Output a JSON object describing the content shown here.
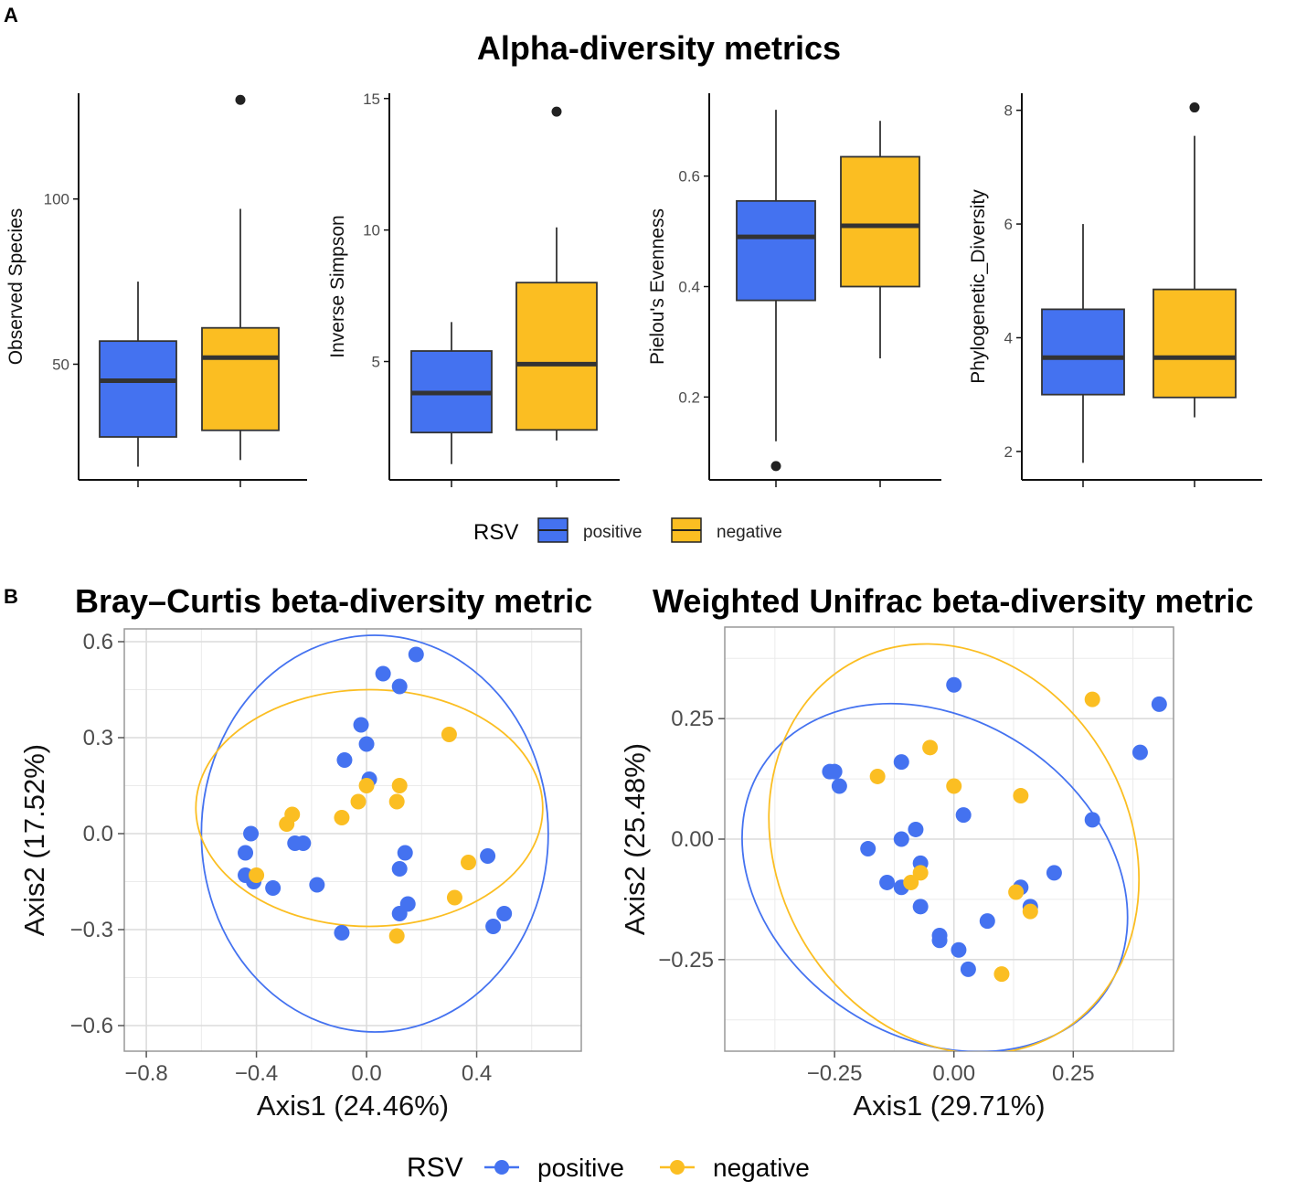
{
  "panel_a_label": "A",
  "panel_b_label": "B",
  "alpha_title": "Alpha-diversity metrics",
  "colors": {
    "positive": "#4472f0",
    "negative": "#fbbe22",
    "axis": "#111111",
    "grid": "#dcdcdc",
    "tick_text": "#4d4d4d"
  },
  "alpha_legend": {
    "title": "RSV",
    "items": [
      "positive",
      "negative"
    ]
  },
  "beta_legend": {
    "title": "RSV",
    "items": [
      "positive",
      "negative"
    ]
  },
  "chart_data": [
    {
      "type": "box",
      "ylabel": "Observed Species",
      "ylim": [
        15,
        132
      ],
      "yticks": [
        50,
        100
      ],
      "series": [
        {
          "name": "positive",
          "whisker_low": 19,
          "q1": 28,
          "median": 45,
          "q3": 57,
          "whisker_high": 75,
          "outliers": []
        },
        {
          "name": "negative",
          "whisker_low": 21,
          "q1": 30,
          "median": 52,
          "q3": 61,
          "whisker_high": 97,
          "outliers": [
            130
          ]
        }
      ]
    },
    {
      "type": "box",
      "ylabel": "Inverse Simpson",
      "ylim": [
        0.5,
        15.2
      ],
      "yticks": [
        5,
        10,
        15
      ],
      "series": [
        {
          "name": "positive",
          "whisker_low": 1.1,
          "q1": 2.3,
          "median": 3.8,
          "q3": 5.4,
          "whisker_high": 6.5,
          "outliers": []
        },
        {
          "name": "negative",
          "whisker_low": 2.0,
          "q1": 2.4,
          "median": 4.9,
          "q3": 8.0,
          "whisker_high": 10.1,
          "outliers": [
            14.5
          ]
        }
      ]
    },
    {
      "type": "box",
      "ylabel": "Pielou's Evenness",
      "ylim": [
        0.05,
        0.75
      ],
      "yticks": [
        0.2,
        0.4,
        0.6
      ],
      "series": [
        {
          "name": "positive",
          "whisker_low": 0.12,
          "q1": 0.375,
          "median": 0.49,
          "q3": 0.555,
          "whisker_high": 0.72,
          "outliers": [
            0.075
          ]
        },
        {
          "name": "negative",
          "whisker_low": 0.27,
          "q1": 0.4,
          "median": 0.51,
          "q3": 0.635,
          "whisker_high": 0.7,
          "outliers": []
        }
      ]
    },
    {
      "type": "box",
      "ylabel": "Phylogenetic_Diversity",
      "ylim": [
        1.5,
        8.3
      ],
      "yticks": [
        2,
        4,
        6,
        8
      ],
      "series": [
        {
          "name": "positive",
          "whisker_low": 1.8,
          "q1": 3.0,
          "median": 3.65,
          "q3": 4.5,
          "whisker_high": 6.0,
          "outliers": []
        },
        {
          "name": "negative",
          "whisker_low": 2.6,
          "q1": 2.95,
          "median": 3.65,
          "q3": 4.85,
          "whisker_high": 7.55,
          "outliers": [
            8.05
          ]
        }
      ]
    },
    {
      "type": "scatter",
      "title": "Bray–Curtis beta-diversity metric",
      "xlabel": "Axis1 (24.46%)",
      "ylabel": "Axis2 (17.52%)",
      "xlim": [
        -0.88,
        0.78
      ],
      "ylim": [
        -0.68,
        0.64
      ],
      "xticks": [
        -0.8,
        -0.4,
        0.0,
        0.4
      ],
      "xtick_labels": [
        "−0.8",
        "−0.4",
        "0.0",
        "0.4"
      ],
      "yticks": [
        -0.6,
        -0.3,
        0.0,
        0.3,
        0.6
      ],
      "ytick_labels": [
        "−0.6",
        "−0.3",
        "0.0",
        "0.3",
        "0.6"
      ],
      "series": [
        {
          "name": "positive",
          "points": [
            [
              0.18,
              0.56
            ],
            [
              0.06,
              0.5
            ],
            [
              0.12,
              0.46
            ],
            [
              -0.02,
              0.34
            ],
            [
              0.0,
              0.28
            ],
            [
              -0.08,
              0.23
            ],
            [
              0.01,
              0.17
            ],
            [
              -0.42,
              0.0
            ],
            [
              -0.26,
              -0.03
            ],
            [
              -0.23,
              -0.03
            ],
            [
              -0.44,
              -0.06
            ],
            [
              -0.18,
              -0.16
            ],
            [
              -0.44,
              -0.13
            ],
            [
              -0.34,
              -0.17
            ],
            [
              -0.41,
              -0.15
            ],
            [
              0.14,
              -0.06
            ],
            [
              0.12,
              -0.11
            ],
            [
              0.15,
              -0.22
            ],
            [
              0.12,
              -0.25
            ],
            [
              0.44,
              -0.07
            ],
            [
              0.5,
              -0.25
            ],
            [
              0.46,
              -0.29
            ],
            [
              -0.09,
              -0.31
            ]
          ]
        },
        {
          "name": "negative",
          "points": [
            [
              0.3,
              0.31
            ],
            [
              0.12,
              0.15
            ],
            [
              0.0,
              0.15
            ],
            [
              -0.03,
              0.1
            ],
            [
              0.11,
              0.1
            ],
            [
              -0.09,
              0.05
            ],
            [
              -0.29,
              0.03
            ],
            [
              -0.27,
              0.06
            ],
            [
              -0.4,
              -0.13
            ],
            [
              0.37,
              -0.09
            ],
            [
              0.32,
              -0.2
            ],
            [
              0.11,
              -0.32
            ]
          ]
        }
      ],
      "ellipses": [
        {
          "name": "positive",
          "center": [
            0.03,
            0.0
          ],
          "rx": 0.63,
          "ry": 0.62
        },
        {
          "name": "negative",
          "center": [
            0.01,
            0.08
          ],
          "rx": 0.63,
          "ry": 0.37
        }
      ]
    },
    {
      "type": "scatter",
      "title": "Weighted Unifrac beta-diversity metric",
      "xlabel": "Axis1 (29.71%)",
      "ylabel": "Axis2 (25.48%)",
      "xlim": [
        -0.48,
        0.46
      ],
      "ylim": [
        -0.44,
        0.44
      ],
      "xticks": [
        -0.25,
        0.0,
        0.25
      ],
      "xtick_labels": [
        "−0.25",
        "0.00",
        "0.25"
      ],
      "yticks": [
        -0.25,
        0.0,
        0.25
      ],
      "ytick_labels": [
        "−0.25",
        "0.00",
        "0.25"
      ],
      "series": [
        {
          "name": "positive",
          "points": [
            [
              0.0,
              0.32
            ],
            [
              -0.26,
              0.14
            ],
            [
              -0.25,
              0.14
            ],
            [
              -0.24,
              0.11
            ],
            [
              -0.11,
              0.16
            ],
            [
              0.02,
              0.05
            ],
            [
              -0.08,
              0.02
            ],
            [
              -0.11,
              0.0
            ],
            [
              -0.18,
              -0.02
            ],
            [
              -0.14,
              -0.09
            ],
            [
              -0.11,
              -0.1
            ],
            [
              -0.07,
              -0.05
            ],
            [
              -0.07,
              -0.14
            ],
            [
              -0.03,
              -0.2
            ],
            [
              -0.03,
              -0.21
            ],
            [
              0.01,
              -0.23
            ],
            [
              0.03,
              -0.27
            ],
            [
              0.07,
              -0.17
            ],
            [
              0.14,
              -0.1
            ],
            [
              0.16,
              -0.14
            ],
            [
              0.21,
              -0.07
            ],
            [
              0.29,
              0.04
            ],
            [
              0.39,
              0.18
            ],
            [
              0.43,
              0.28
            ]
          ]
        },
        {
          "name": "negative",
          "points": [
            [
              0.29,
              0.29
            ],
            [
              -0.16,
              0.13
            ],
            [
              -0.05,
              0.19
            ],
            [
              0.0,
              0.11
            ],
            [
              0.14,
              0.09
            ],
            [
              -0.09,
              -0.09
            ],
            [
              -0.07,
              -0.07
            ],
            [
              0.13,
              -0.11
            ],
            [
              0.16,
              -0.15
            ],
            [
              0.1,
              -0.28
            ]
          ]
        }
      ],
      "ellipses": [
        {
          "name": "positive",
          "center": [
            -0.04,
            -0.08
          ],
          "rx": 0.43,
          "ry": 0.33,
          "rotate": 33
        },
        {
          "name": "negative",
          "center": [
            0.0,
            -0.02
          ],
          "rx": 0.37,
          "ry": 0.44,
          "rotate": -28
        }
      ]
    }
  ]
}
